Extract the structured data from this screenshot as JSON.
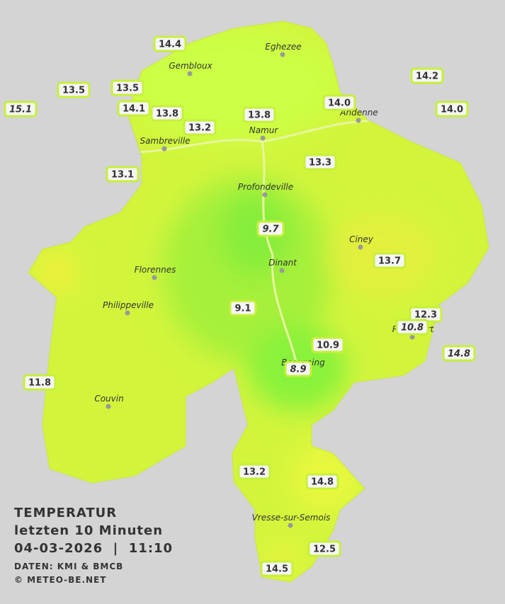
{
  "legend": {
    "title": "TEMPERATUR",
    "subtitle": "letzten 10 Minuten",
    "datetime": "04-03-2026  |  11:10",
    "source": "DATEN: KMI & BMCB",
    "copyright": "© METEO-BE.NET"
  },
  "towns": [
    "Eghezee",
    "Gembloux",
    "Andenne",
    "Namur",
    "Sambreville",
    "Profondeville",
    "Ciney",
    "Dinant",
    "Florennes",
    "Philippeville",
    "Beauraing",
    "Rochefort",
    "Couvin",
    "Vresse-sur-Semois"
  ],
  "stations": [
    {
      "value": "14.4",
      "italic": false
    },
    {
      "value": "13.5",
      "italic": false
    },
    {
      "value": "13.5",
      "italic": false
    },
    {
      "value": "15.1",
      "italic": true
    },
    {
      "value": "14.1",
      "italic": false
    },
    {
      "value": "13.8",
      "italic": false
    },
    {
      "value": "13.2",
      "italic": false
    },
    {
      "value": "13.8",
      "italic": false
    },
    {
      "value": "14.0",
      "italic": false
    },
    {
      "value": "14.2",
      "italic": false
    },
    {
      "value": "14.0",
      "italic": false
    },
    {
      "value": "13.1",
      "italic": false
    },
    {
      "value": "13.3",
      "italic": false
    },
    {
      "value": "9.7",
      "italic": true
    },
    {
      "value": "13.7",
      "italic": false
    },
    {
      "value": "9.1",
      "italic": false
    },
    {
      "value": "12.3",
      "italic": false
    },
    {
      "value": "10.8",
      "italic": true
    },
    {
      "value": "10.9",
      "italic": false
    },
    {
      "value": "14.8",
      "italic": true
    },
    {
      "value": "8.9",
      "italic": true
    },
    {
      "value": "11.8",
      "italic": false
    },
    {
      "value": "13.2",
      "italic": false
    },
    {
      "value": "14.8",
      "italic": false
    },
    {
      "value": "12.5",
      "italic": false
    },
    {
      "value": "14.5",
      "italic": false
    }
  ]
}
